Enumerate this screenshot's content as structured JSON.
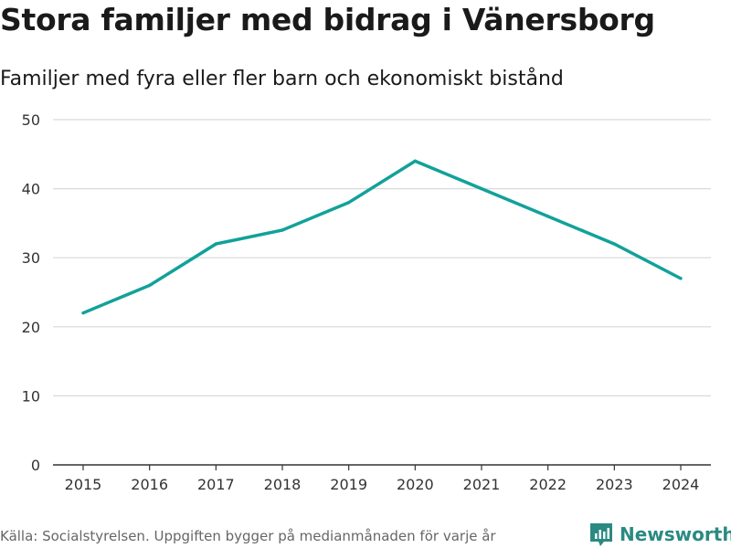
{
  "title": "Stora familjer med bidrag i Vänersborg",
  "subtitle": "Familjer med fyra eller fler barn och ekonomiskt bistånd",
  "source": "Källa: Socialstyrelsen. Uppgiften bygger på medianmånaden för varje år",
  "brand": {
    "name": "Newsworthy",
    "icon": "bar-chart-logo-icon",
    "color": "#2a8a83"
  },
  "colors": {
    "line": "#12a19a",
    "grid": "#d9d9d9",
    "axis": "#333333"
  },
  "chart_data": {
    "type": "line",
    "title": "Stora familjer med bidrag i Vänersborg",
    "subtitle": "Familjer med fyra eller fler barn och ekonomiskt bistånd",
    "xlabel": "",
    "ylabel": "",
    "x": [
      2015,
      2016,
      2017,
      2018,
      2019,
      2020,
      2021,
      2022,
      2023,
      2024
    ],
    "series": [
      {
        "name": "Familjer",
        "values": [
          22,
          26,
          32,
          34,
          38,
          44,
          40,
          36,
          32,
          27
        ]
      }
    ],
    "ylim": [
      0,
      50
    ],
    "yticks": [
      0,
      10,
      20,
      30,
      40,
      50
    ],
    "grid": true,
    "legend": "none"
  }
}
